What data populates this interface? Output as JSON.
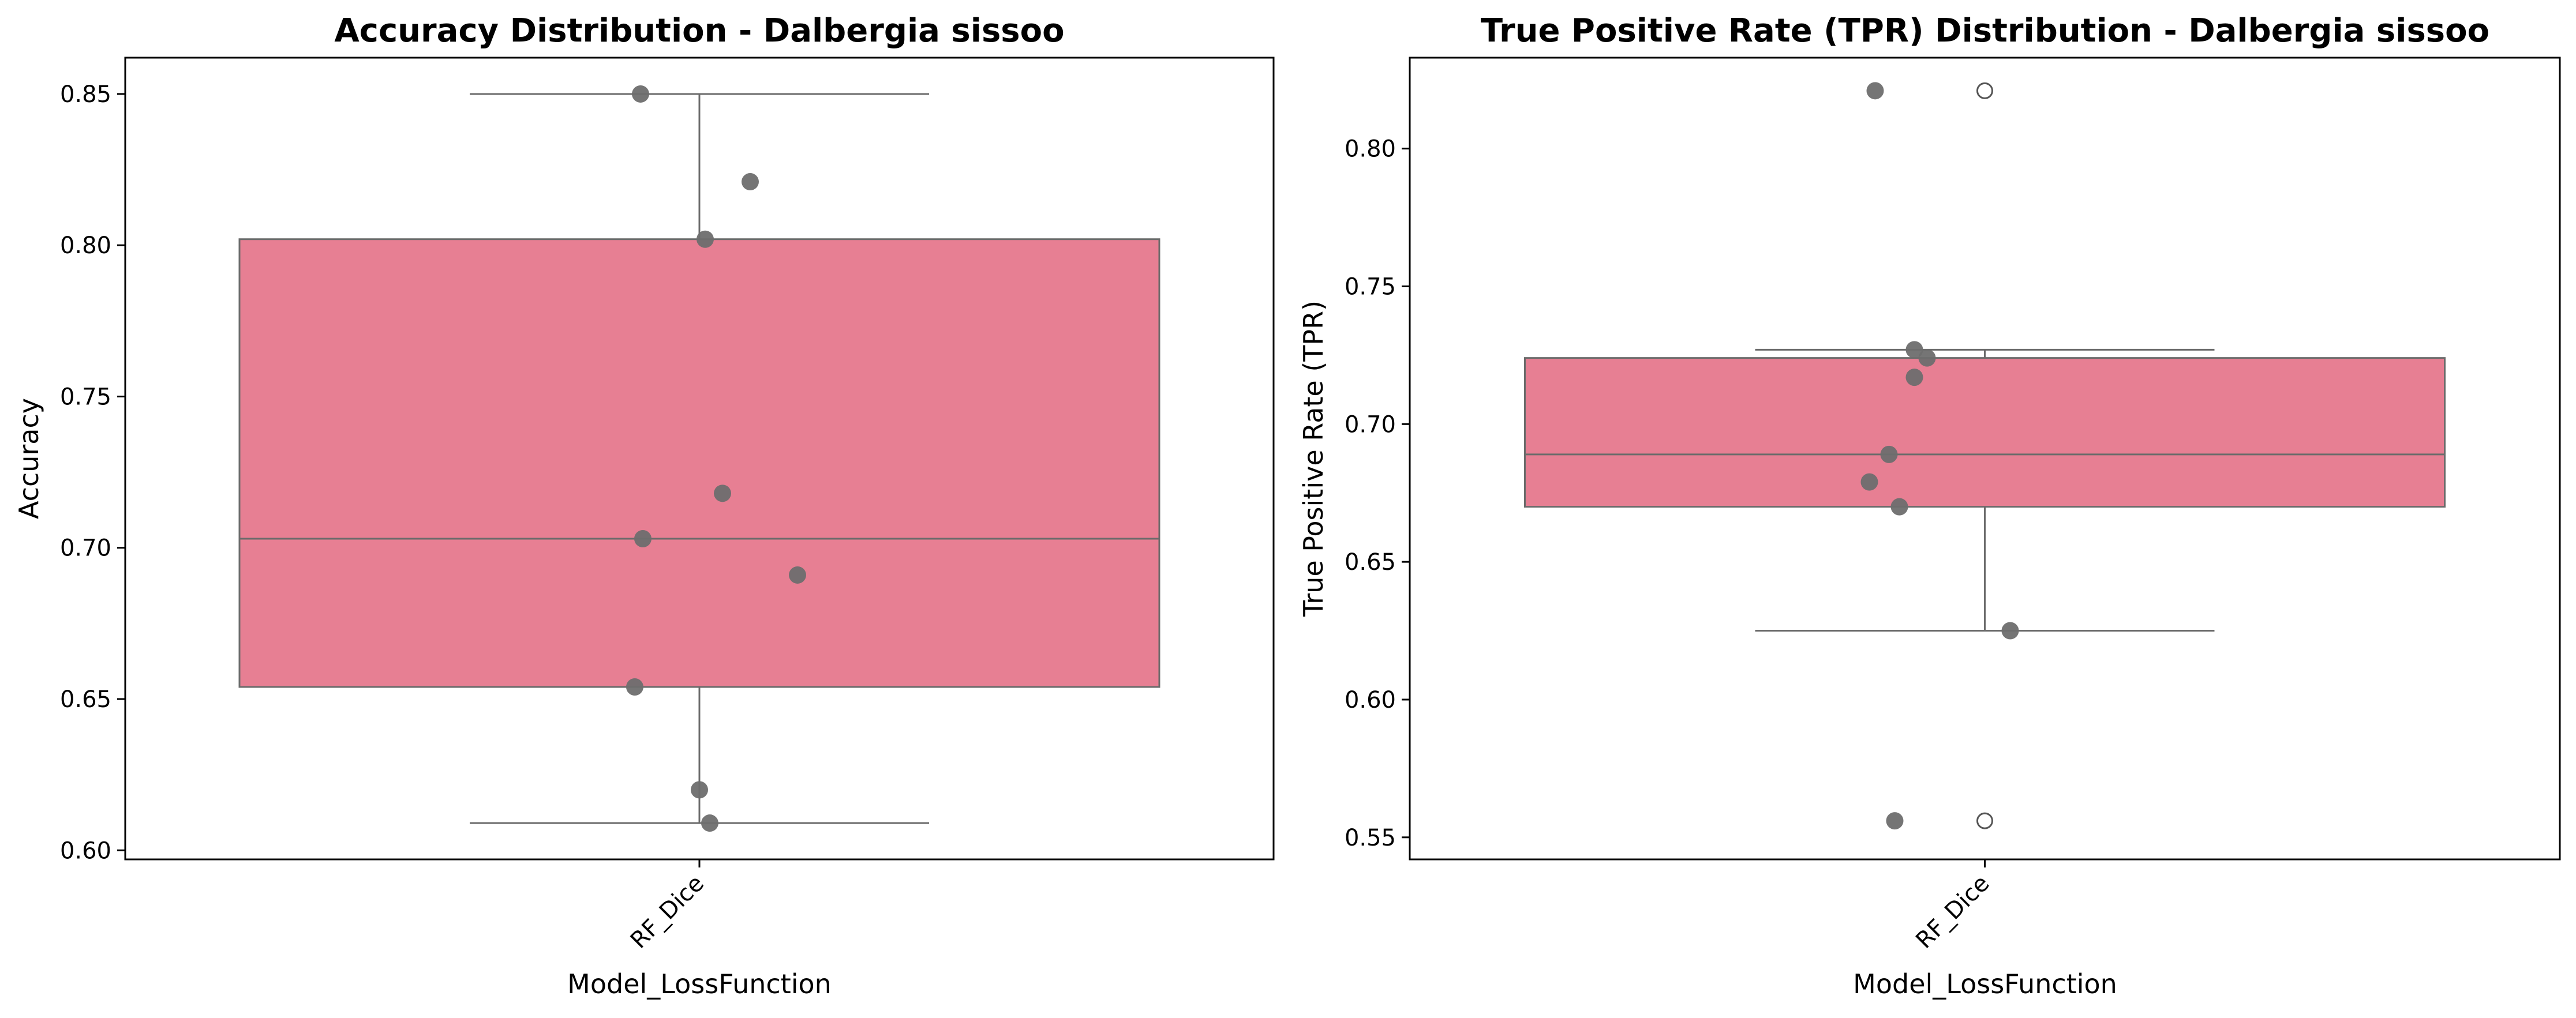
{
  "colors": {
    "box_fill": "#e77f93",
    "box_edge": "#6b6b6b",
    "point_fill": "#6e6e6e",
    "outlier_fill": "#ffffff"
  },
  "chart_data": [
    {
      "type": "box",
      "title": "Accuracy Distribution - Dalbergia sissoo",
      "xlabel": "Model_LossFunction",
      "ylabel": "Accuracy",
      "categories": [
        "RF_Dice"
      ],
      "ylim": [
        0.597,
        0.862
      ],
      "yticks": [
        0.6,
        0.65,
        0.7,
        0.75,
        0.8,
        0.85
      ],
      "ytick_labels": [
        "0.60",
        "0.65",
        "0.70",
        "0.75",
        "0.80",
        "0.85"
      ],
      "box": {
        "q1": 0.654,
        "median": 0.703,
        "q3": 0.802,
        "whisker_low": 0.609,
        "whisker_high": 0.85
      },
      "points": [
        0.85,
        0.821,
        0.802,
        0.718,
        0.703,
        0.691,
        0.654,
        0.62,
        0.609
      ],
      "outliers": [],
      "grid": false
    },
    {
      "type": "box",
      "title": "True Positive Rate (TPR) Distribution - Dalbergia sissoo",
      "xlabel": "Model_LossFunction",
      "ylabel": "True Positive Rate (TPR)",
      "categories": [
        "RF_Dice"
      ],
      "ylim": [
        0.542,
        0.833
      ],
      "yticks": [
        0.55,
        0.6,
        0.65,
        0.7,
        0.75,
        0.8
      ],
      "ytick_labels": [
        "0.55",
        "0.60",
        "0.65",
        "0.70",
        "0.75",
        "0.80"
      ],
      "box": {
        "q1": 0.67,
        "median": 0.689,
        "q3": 0.724,
        "whisker_low": 0.625,
        "whisker_high": 0.727
      },
      "points": [
        0.821,
        0.727,
        0.724,
        0.717,
        0.689,
        0.679,
        0.67,
        0.625,
        0.556
      ],
      "outliers": [
        0.821,
        0.556
      ],
      "grid": false
    }
  ]
}
